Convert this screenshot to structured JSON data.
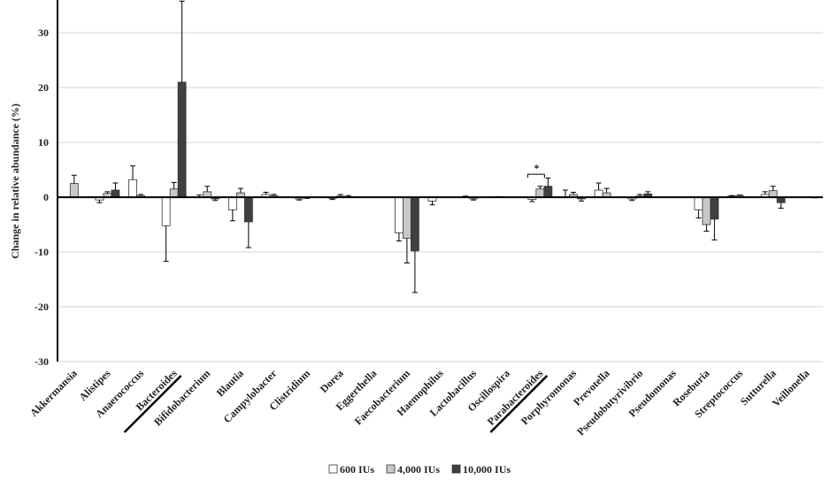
{
  "chart_data": {
    "type": "bar",
    "y_label": "Change in relative abundance (%)",
    "categories": [
      "Akkermansia",
      "Alistipes",
      "Anaerococcus",
      "Bacteroides",
      "Bifidobacterium",
      "Blautia",
      "Campylobacter",
      "Clistridium",
      "Dorea",
      "Eggerthella",
      "Faecobacterium",
      "Haemophilus",
      "Lactobacillus",
      "Oscillospira",
      "Parabacteroides",
      "Porphyromonas",
      "Prevotella",
      "Pseudobutyrivibrio",
      "Pseudomonas",
      "Roseburia",
      "Streptococcus",
      "Sutturella",
      "Veillonella"
    ],
    "series": [
      {
        "name": "600 IUs",
        "color": "#ffffff",
        "values": [
          0,
          -0.5,
          3.2,
          -5.2,
          0,
          -2.3,
          0.5,
          -0.3,
          -0.2,
          0,
          -6.5,
          -0.7,
          0.1,
          0.1,
          -0.4,
          0,
          1.3,
          -0.3,
          0,
          -2.3,
          0.2,
          0.5,
          0
        ],
        "errors": [
          0,
          0.5,
          2.5,
          6.5,
          0.4,
          2,
          0.4,
          0.2,
          0.2,
          0,
          1.5,
          0.7,
          0.1,
          0,
          0.4,
          1.3,
          1.3,
          0.3,
          0,
          1.5,
          0.1,
          0.5,
          0
        ]
      },
      {
        "name": "4,000 IUs",
        "color": "#c8c8c8",
        "values": [
          2.5,
          0.7,
          0.3,
          1.5,
          1,
          0.8,
          0.3,
          -0.1,
          0.2,
          0,
          -7.5,
          0,
          -0.3,
          0,
          1.5,
          0.5,
          0.8,
          0.2,
          0,
          -5,
          0.3,
          1.2,
          0
        ],
        "errors": [
          1.5,
          0.3,
          0.2,
          1.2,
          1,
          0.8,
          0.2,
          0.1,
          0.3,
          0,
          4.5,
          0,
          0.2,
          0,
          0.5,
          0.4,
          0.8,
          0.3,
          0,
          1.2,
          0.1,
          0.8,
          0
        ]
      },
      {
        "name": "10,000 IUs",
        "color": "#404040",
        "values": [
          0,
          1.3,
          0,
          21,
          -0.3,
          -4.5,
          0,
          0,
          0.1,
          0,
          -9.8,
          0,
          0,
          0,
          2,
          -0.3,
          0,
          0.6,
          0,
          -4,
          0,
          -1,
          -0.1
        ],
        "errors": [
          0,
          1.3,
          0,
          14.8,
          0.3,
          4.7,
          0,
          0,
          0.2,
          0,
          7.6,
          0,
          0,
          0,
          1.5,
          0.4,
          0,
          0.4,
          0,
          3.8,
          0,
          1,
          0
        ]
      }
    ],
    "annotations": [
      {
        "text": "*"
      }
    ],
    "ylim": [
      -30,
      36
    ],
    "yticks": [
      -30,
      -20,
      -10,
      0,
      10,
      20,
      30
    ],
    "grid": true,
    "legend": "bottom"
  }
}
